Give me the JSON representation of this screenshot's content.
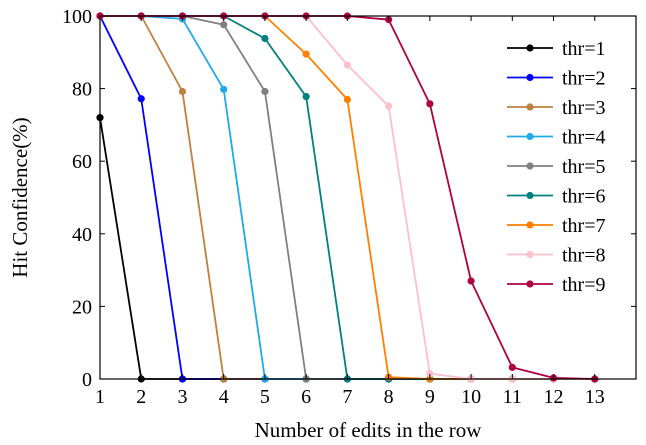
{
  "chart_data": {
    "type": "line",
    "title": "",
    "xlabel": "Number of edits in the row",
    "ylabel": "Hit Confidence(%)",
    "xlim": [
      1,
      14
    ],
    "ylim": [
      0,
      100
    ],
    "xticks": [
      1,
      2,
      3,
      4,
      5,
      6,
      7,
      8,
      9,
      10,
      11,
      12,
      13
    ],
    "yticks": [
      0,
      20,
      40,
      60,
      80,
      100
    ],
    "grid": false,
    "legend_position": "top-right",
    "series": [
      {
        "name": "thr=1",
        "color": "#000000",
        "x": [
          1,
          2,
          3,
          4,
          5,
          6,
          7,
          8,
          9,
          10,
          11,
          12,
          13
        ],
        "y": [
          72,
          0,
          0,
          0,
          0,
          0,
          0,
          0,
          0,
          0,
          0,
          0,
          0
        ]
      },
      {
        "name": "thr=2",
        "color": "#0000ff",
        "x": [
          1,
          2,
          3,
          4,
          5,
          6,
          7,
          8,
          9,
          10,
          11,
          12,
          13
        ],
        "y": [
          100,
          77.2,
          0,
          0,
          0,
          0,
          0,
          0,
          0,
          0,
          0,
          0,
          0
        ]
      },
      {
        "name": "thr=3",
        "color": "#bf8040",
        "x": [
          1,
          2,
          3,
          4,
          5,
          6,
          7,
          8,
          9,
          10,
          11,
          12,
          13
        ],
        "y": [
          100,
          100,
          79.2,
          0,
          0,
          0,
          0,
          0,
          0,
          0,
          0,
          0,
          0
        ]
      },
      {
        "name": "thr=4",
        "color": "#1eaaec",
        "x": [
          1,
          2,
          3,
          4,
          5,
          6,
          7,
          8,
          9,
          10,
          11,
          12,
          13
        ],
        "y": [
          100,
          100,
          99.2,
          79.8,
          0,
          0,
          0,
          0,
          0,
          0,
          0,
          0,
          0
        ]
      },
      {
        "name": "thr=5",
        "color": "#808080",
        "x": [
          1,
          2,
          3,
          4,
          5,
          6,
          7,
          8,
          9,
          10,
          11,
          12,
          13
        ],
        "y": [
          100,
          100,
          100,
          97.6,
          79.2,
          0,
          0,
          0,
          0,
          0,
          0,
          0,
          0
        ]
      },
      {
        "name": "thr=6",
        "color": "#008080",
        "x": [
          1,
          2,
          3,
          4,
          5,
          6,
          7,
          8,
          9,
          10,
          11,
          12,
          13
        ],
        "y": [
          100,
          100,
          100,
          100,
          93.8,
          77.8,
          0,
          0,
          0,
          0,
          0,
          0,
          0
        ]
      },
      {
        "name": "thr=7",
        "color": "#ff8000",
        "x": [
          1,
          2,
          3,
          4,
          5,
          6,
          7,
          8,
          9,
          10,
          11,
          12,
          13
        ],
        "y": [
          100,
          100,
          100,
          100,
          100,
          89.5,
          77,
          0.5,
          0,
          0,
          0,
          0,
          0
        ]
      },
      {
        "name": "thr=8",
        "color": "#ffc0cb",
        "x": [
          1,
          2,
          3,
          4,
          5,
          6,
          7,
          8,
          9,
          10,
          11,
          12,
          13
        ],
        "y": [
          100,
          100,
          100,
          100,
          100,
          100,
          86.5,
          75.2,
          1.5,
          0,
          0,
          0,
          0
        ]
      },
      {
        "name": "thr=9",
        "color": "#b00040",
        "x": [
          1,
          2,
          3,
          4,
          5,
          6,
          7,
          8,
          9,
          10,
          11,
          12,
          13
        ],
        "y": [
          100,
          100,
          100,
          100,
          100,
          100,
          100,
          99,
          75.8,
          27,
          3.2,
          0.3,
          0
        ]
      }
    ]
  }
}
